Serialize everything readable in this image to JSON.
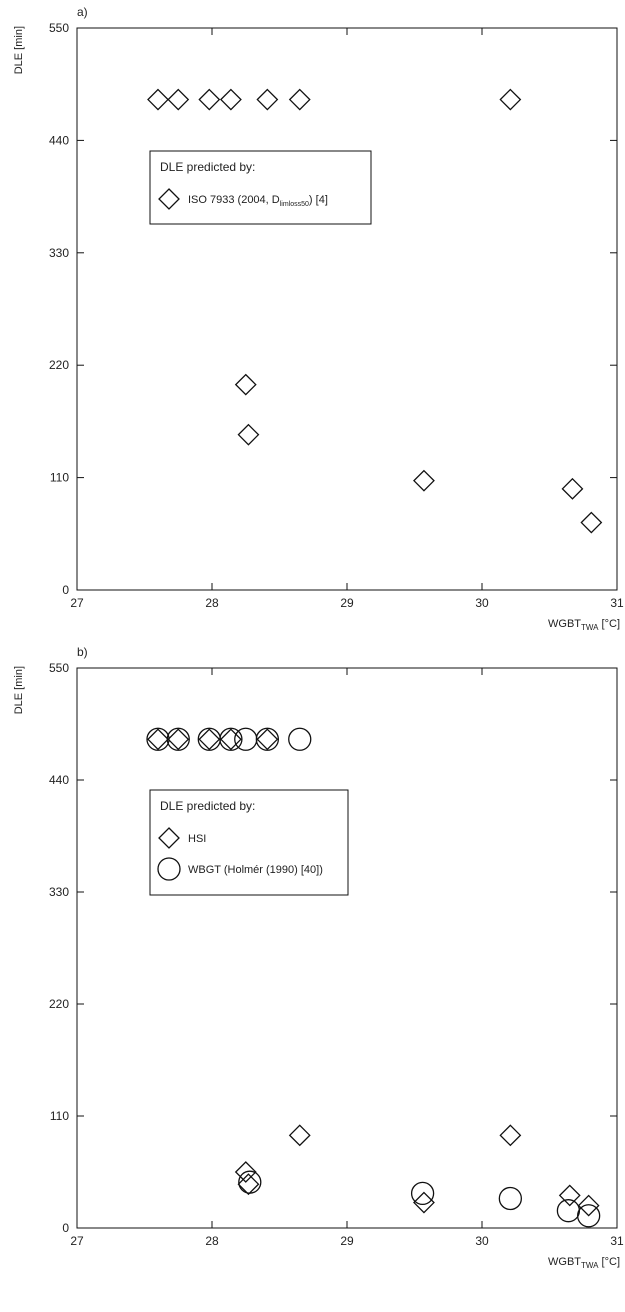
{
  "chart_data": [
    {
      "type": "scatter",
      "panel_label": "a)",
      "xlabel": "WGBT",
      "xlabel_sub": "TWA",
      "xlabel_unit": " [°C]",
      "ylabel": "DLE [min]",
      "xlim": [
        27,
        31
      ],
      "ylim": [
        0,
        550
      ],
      "x_ticks": [
        "27",
        "28",
        "29",
        "30",
        "31"
      ],
      "y_ticks": [
        "0",
        "110",
        "220",
        "330",
        "440",
        "550"
      ],
      "grid": false,
      "legend": {
        "title": "DLE predicted by:",
        "placement": "upper-left",
        "entries": [
          {
            "text": "ISO 7933 (2004, D",
            "sub": "limloss50",
            "after": ") [4]"
          }
        ]
      },
      "series": [
        {
          "marker": "diamond",
          "x": [
            27.6,
            27.75,
            27.98,
            28.14,
            28.41,
            28.65,
            28.25,
            28.27,
            29.57,
            30.21,
            30.67,
            30.81
          ],
          "y": [
            480,
            480,
            480,
            480,
            480,
            480,
            201,
            152,
            107,
            480,
            99,
            66
          ]
        }
      ]
    },
    {
      "type": "scatter",
      "panel_label": "b)",
      "xlabel": "WGBT",
      "xlabel_sub": "TWA",
      "xlabel_unit": " [°C]",
      "ylabel": "DLE [min]",
      "xlim": [
        27,
        31
      ],
      "ylim": [
        0,
        550
      ],
      "x_ticks": [
        "27",
        "28",
        "29",
        "30",
        "31"
      ],
      "y_ticks": [
        "0",
        "110",
        "220",
        "330",
        "440",
        "550"
      ],
      "grid": false,
      "legend": {
        "title": "DLE predicted by:",
        "placement": "upper-left",
        "entries": [
          {
            "text": "HSI",
            "sub": "",
            "after": ""
          },
          {
            "text": "WBGT (Holmér (1990) [40])",
            "sub": "",
            "after": ""
          }
        ]
      },
      "series": [
        {
          "marker": "diamond",
          "x": [
            27.6,
            27.75,
            27.98,
            28.14,
            28.41,
            28.25,
            28.27,
            28.65,
            29.57,
            30.21,
            30.65,
            30.79
          ],
          "y": [
            480,
            480,
            480,
            480,
            480,
            55,
            43,
            91,
            25,
            91,
            32,
            22
          ]
        },
        {
          "marker": "circle",
          "x": [
            27.6,
            27.75,
            27.98,
            28.14,
            28.25,
            28.41,
            28.65,
            28.28,
            29.56,
            30.21,
            30.64,
            30.79
          ],
          "y": [
            480,
            480,
            480,
            480,
            480,
            480,
            480,
            45,
            34,
            29,
            17,
            12
          ]
        }
      ]
    }
  ]
}
